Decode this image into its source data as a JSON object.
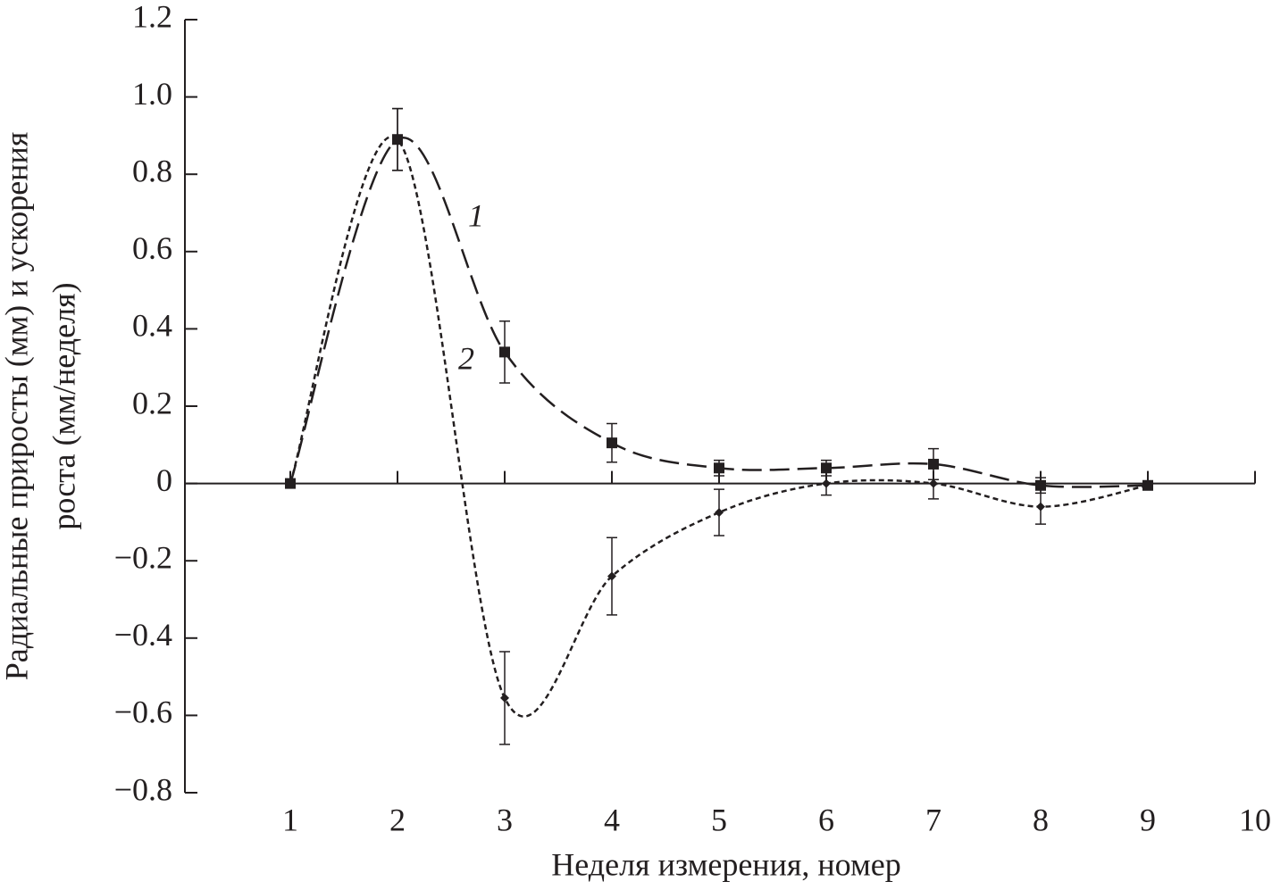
{
  "chart_data": {
    "type": "line",
    "xlabel": "Неделя измерения, номер",
    "ylabel": [
      "Радиальные приросты (мм) и ускорения",
      "роста (мм/неделя)"
    ],
    "x": [
      1,
      2,
      3,
      4,
      5,
      6,
      7,
      8,
      9
    ],
    "series": [
      {
        "name": "1",
        "color": "#231f20",
        "marker": "square",
        "values": [
          0,
          0.89,
          0.34,
          0.105,
          0.04,
          0.04,
          0.05,
          -0.005,
          -0.005
        ],
        "errors": [
          0.01,
          0.08,
          0.08,
          0.05,
          0.02,
          0.02,
          0.04,
          0.02,
          0.01
        ]
      },
      {
        "name": "2",
        "color": "#231f20",
        "marker": "diamond",
        "values": [
          0,
          0.89,
          -0.555,
          -0.24,
          -0.075,
          0,
          0,
          -0.06,
          -0.005
        ],
        "errors": [
          0.01,
          0.08,
          0.12,
          0.1,
          0.06,
          0.03,
          0.04,
          0.045,
          0.01
        ]
      }
    ],
    "xlim": [
      0,
      10
    ],
    "xticks": [
      1,
      2,
      3,
      4,
      5,
      6,
      7,
      8,
      9,
      10
    ],
    "ylim": [
      -0.8,
      1.2
    ],
    "yticks": [
      {
        "value": -0.8,
        "label": "−0.8"
      },
      {
        "value": -0.6,
        "label": "−0.6"
      },
      {
        "value": -0.4,
        "label": "−0.4"
      },
      {
        "value": -0.2,
        "label": "−0.2"
      },
      0,
      0.2,
      0.4,
      0.6,
      0.8,
      {
        "value": 1.0,
        "label": "1.0"
      },
      1.2
    ],
    "grid": false
  }
}
